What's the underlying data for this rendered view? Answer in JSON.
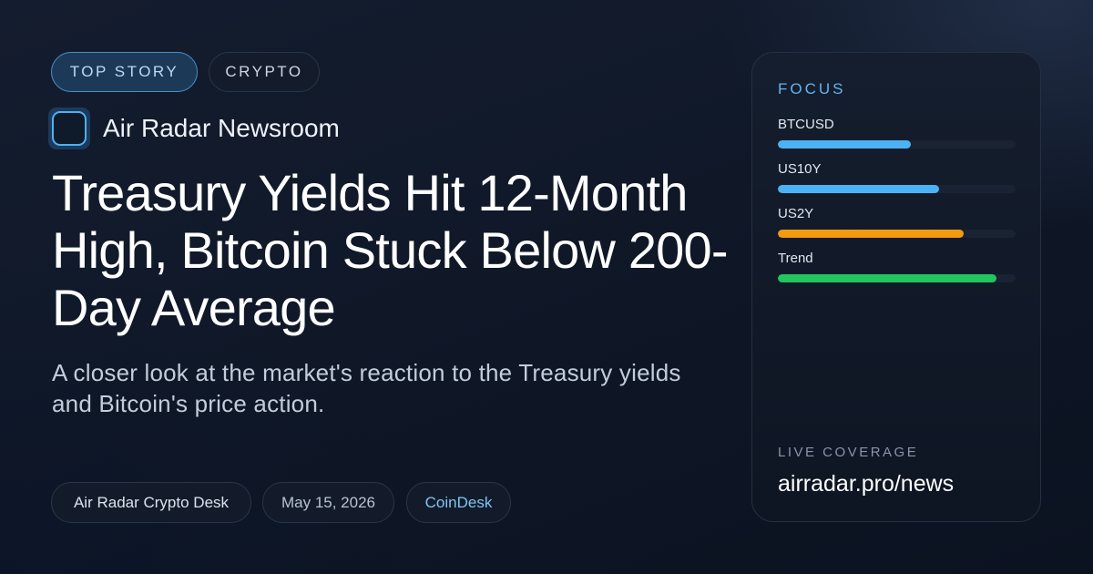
{
  "tags": {
    "primary": "TOP STORY",
    "secondary": "CRYPTO"
  },
  "brand": {
    "logo_icon": "square-outline-icon",
    "name": "Air Radar Newsroom"
  },
  "headline": "Treasury Yields Hit 12-Month High, Bitcoin Stuck Below 200-Day Average",
  "subtitle": "A closer look at the market's reaction to the Treasury yields and Bitcoin's price action.",
  "meta": {
    "desk": "Air Radar Crypto Desk",
    "date": "May 15, 2026",
    "source": "CoinDesk"
  },
  "focus_panel": {
    "label": "FOCUS",
    "metrics": [
      {
        "name": "BTCUSD",
        "level": 0.56,
        "color": "#4db2f5"
      },
      {
        "name": "US10Y",
        "level": 0.68,
        "color": "#4db2f5"
      },
      {
        "name": "US2Y",
        "level": 0.78,
        "color": "#f29a12"
      },
      {
        "name": "Trend",
        "level": 0.92,
        "color": "#22c55e"
      }
    ],
    "live_label": "LIVE COVERAGE",
    "site": "airradar.pro/news"
  }
}
